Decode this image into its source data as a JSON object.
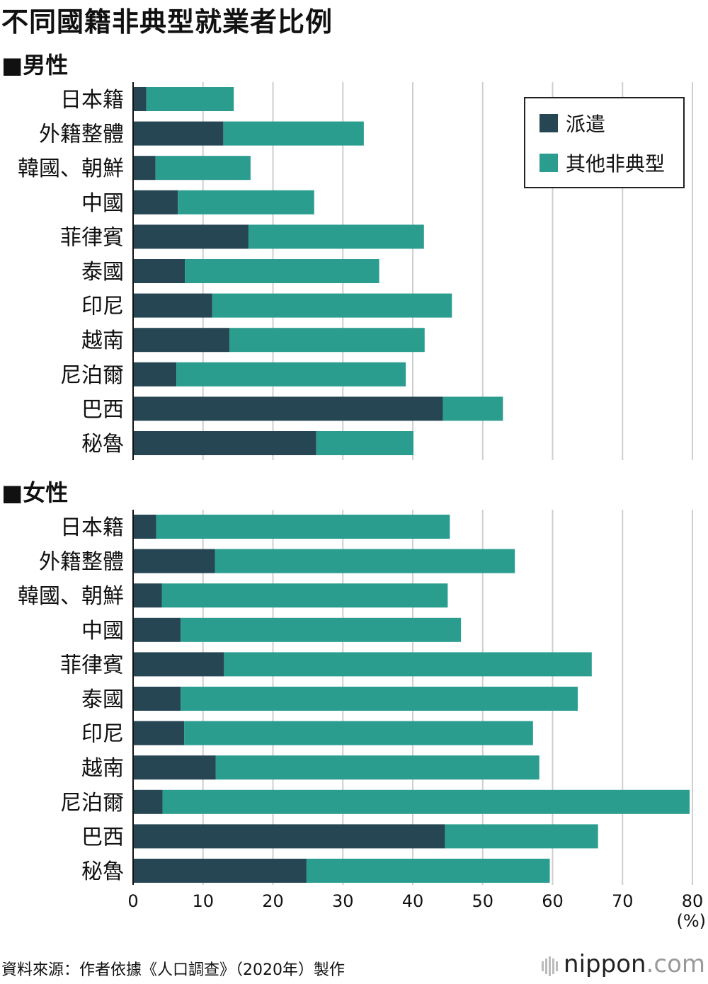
{
  "title": "不同國籍非典型就業者比例",
  "source": "資料來源：作者依據《人口調查》（2020年）製作",
  "logo": {
    "brand": "nippon",
    "dot": ".",
    "suffix": "com"
  },
  "chart_data": {
    "type": "bar",
    "orientation": "horizontal",
    "stacked": true,
    "xlim": [
      0,
      80
    ],
    "xticks": [
      "0",
      "10",
      "20",
      "30",
      "40",
      "50",
      "60",
      "70",
      "80"
    ],
    "unit_label": "(%)",
    "grid": true,
    "legend": {
      "placement": "top-right",
      "entries": [
        {
          "name": "派遣",
          "color": "#264653"
        },
        {
          "name": "其他非典型",
          "color": "#2a9d8f"
        }
      ]
    },
    "panels": [
      {
        "heading": "■男性",
        "categories": [
          "日本籍",
          "外籍整體",
          "韓國、朝鮮",
          "中國",
          "菲律賓",
          "泰國",
          "印尼",
          "越南",
          "尼泊爾",
          "巴西",
          "秘魯"
        ],
        "series": [
          {
            "name": "派遣",
            "values": [
              1.9,
              12.9,
              3.2,
              6.4,
              16.5,
              7.4,
              11.3,
              13.8,
              6.2,
              44.3,
              26.2
            ]
          },
          {
            "name": "其他非典型",
            "values": [
              12.5,
              20.1,
              13.6,
              19.5,
              25.1,
              27.8,
              34.3,
              27.9,
              32.8,
              8.6,
              13.9
            ]
          }
        ]
      },
      {
        "heading": "■女性",
        "categories": [
          "日本籍",
          "外籍整體",
          "韓國、朝鮮",
          "中國",
          "菲律賓",
          "泰國",
          "印尼",
          "越南",
          "尼泊爾",
          "巴西",
          "秘魯"
        ],
        "series": [
          {
            "name": "派遣",
            "values": [
              3.3,
              11.7,
              4.1,
              6.8,
              13.0,
              6.8,
              7.3,
              11.8,
              4.2,
              44.6,
              24.8
            ]
          },
          {
            "name": "其他非典型",
            "values": [
              42.0,
              42.9,
              40.9,
              40.1,
              52.6,
              56.8,
              49.9,
              46.3,
              75.4,
              21.9,
              34.8
            ]
          }
        ]
      }
    ]
  }
}
